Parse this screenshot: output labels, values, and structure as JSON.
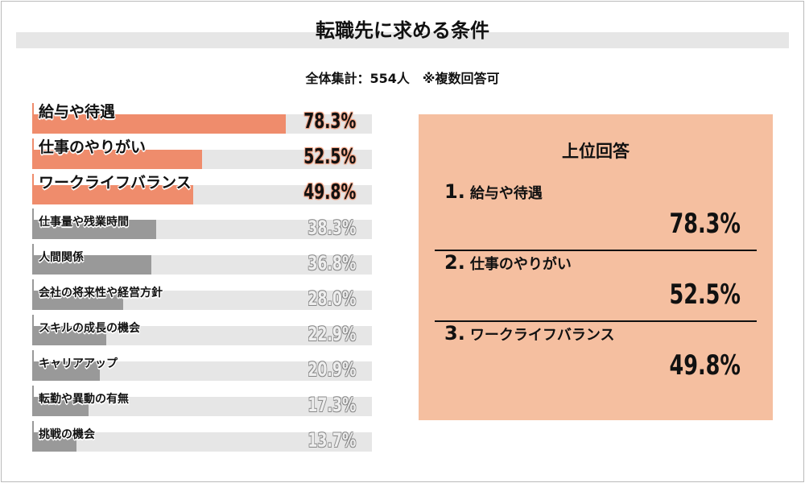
{
  "title": "転職先に求める条件",
  "subtitle": "全体集計：554人　※複数回答可",
  "colors": {
    "highlight": "#ef8c6c",
    "normal": "#999999",
    "track": "#e6e6e6",
    "panel": "#f5bfa0"
  },
  "chart_data": {
    "type": "bar",
    "orientation": "horizontal",
    "title": "転職先に求める条件",
    "categories": [
      "給与や待遇",
      "仕事のやりがい",
      "ワークライフバランス",
      "仕事量や残業時間",
      "人間関係",
      "会社の将来性や経営方針",
      "スキルの成長の機会",
      "キャリアアップ",
      "転勤や異動の有無",
      "挑戦の機会"
    ],
    "values": [
      78.3,
      52.5,
      49.8,
      38.3,
      36.8,
      28.0,
      22.9,
      20.9,
      17.3,
      13.7
    ],
    "labels": [
      "78.3%",
      "52.5%",
      "49.8%",
      "38.3%",
      "36.8%",
      "28.0%",
      "22.9%",
      "20.9%",
      "17.3%",
      "13.7%"
    ],
    "xlim": [
      0,
      100
    ],
    "highlight_top": 3
  },
  "panel": {
    "title": "上位回答",
    "ranks": [
      {
        "num": "1.",
        "name": "給与や待遇",
        "value": "78.3%"
      },
      {
        "num": "2.",
        "name": "仕事のやりがい",
        "value": "52.5%"
      },
      {
        "num": "3.",
        "name": "ワークライフバランス",
        "value": "49.8%"
      }
    ]
  }
}
